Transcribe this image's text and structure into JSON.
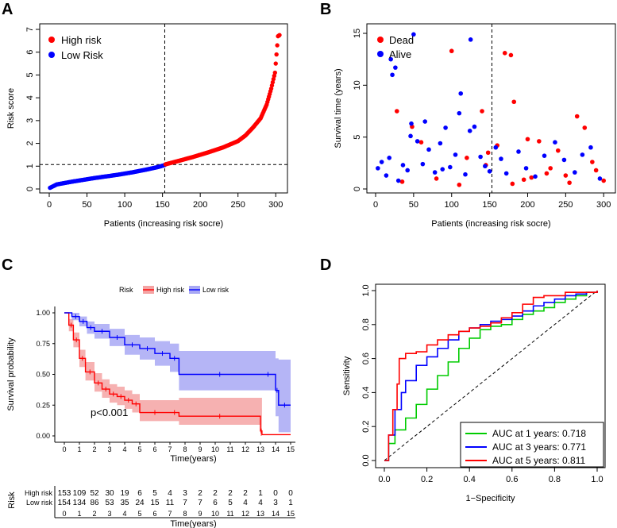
{
  "chart_data": [
    {
      "panel": "A",
      "type": "scatter",
      "xlabel": "Patients (increasing risk socre)",
      "ylabel": "Risk score",
      "xlim": [
        0,
        305
      ],
      "ylim": [
        0,
        7
      ],
      "xticks": [
        0,
        50,
        100,
        150,
        200,
        250,
        300
      ],
      "yticks": [
        0,
        1,
        2,
        3,
        4,
        5,
        6,
        7
      ],
      "cutoff_x": 153,
      "cutoff_y": 1.07,
      "legend": [
        "High risk",
        "Low Risk"
      ],
      "series": [
        {
          "name": "Low Risk",
          "color": "#0000FF",
          "x": [
            1,
            10,
            30,
            60,
            90,
            110,
            130,
            145,
            153
          ],
          "y": [
            0.05,
            0.2,
            0.32,
            0.48,
            0.62,
            0.73,
            0.86,
            0.97,
            1.05
          ]
        },
        {
          "name": "High risk",
          "color": "#FF0000",
          "x": [
            154,
            170,
            190,
            210,
            230,
            250,
            260,
            270,
            280,
            288,
            294,
            299,
            303,
            305
          ],
          "y": [
            1.08,
            1.22,
            1.4,
            1.6,
            1.82,
            2.1,
            2.35,
            2.7,
            3.1,
            3.7,
            4.4,
            5.1,
            6.7,
            6.75
          ]
        }
      ]
    },
    {
      "panel": "B",
      "type": "scatter",
      "xlabel": "Patients (increasing risk socre)",
      "ylabel": "Survival time (years)",
      "xlim": [
        0,
        305
      ],
      "ylim": [
        0,
        15
      ],
      "xticks": [
        0,
        50,
        100,
        150,
        200,
        250,
        300
      ],
      "yticks": [
        0,
        5,
        10,
        15
      ],
      "cutoff_x": 153,
      "legend": [
        "Dead",
        "Alive"
      ],
      "series": [
        {
          "name": "Dead",
          "color": "#FF0000",
          "x": [
            28,
            48,
            60,
            100,
            120,
            140,
            148,
            160,
            170,
            178,
            182,
            200,
            215,
            230,
            250,
            265,
            275,
            290,
            300,
            180,
            195,
            240,
            205,
            255,
            285,
            225,
            145,
            110,
            35,
            80
          ],
          "y": [
            7.5,
            6.0,
            4.5,
            13.3,
            3.0,
            7.5,
            3.5,
            4.2,
            13.1,
            12.9,
            8.4,
            4.8,
            4.6,
            2.0,
            1.3,
            7.0,
            5.9,
            1.8,
            0.8,
            0.5,
            0.9,
            3.7,
            1.1,
            0.6,
            2.6,
            1.5,
            2.3,
            0.4,
            0.7,
            1.0
          ]
        },
        {
          "name": "Alive",
          "color": "#0000FF",
          "x": [
            3,
            8,
            14,
            18,
            22,
            26,
            30,
            36,
            42,
            46,
            50,
            55,
            62,
            70,
            78,
            85,
            92,
            98,
            105,
            112,
            118,
            125,
            130,
            138,
            144,
            150,
            158,
            165,
            172,
            188,
            198,
            210,
            222,
            236,
            248,
            262,
            272,
            283,
            295,
            20,
            47,
            124,
            110,
            65,
            88
          ],
          "y": [
            2.0,
            2.6,
            1.3,
            3.0,
            11.0,
            11.7,
            0.8,
            2.3,
            1.8,
            5.1,
            14.9,
            4.6,
            2.4,
            3.8,
            1.6,
            4.4,
            5.9,
            2.1,
            3.3,
            9.2,
            1.4,
            14.4,
            6.0,
            3.1,
            2.2,
            1.7,
            4.0,
            2.9,
            1.5,
            3.6,
            2.0,
            1.2,
            3.2,
            4.5,
            2.8,
            1.6,
            3.3,
            4.0,
            1.0,
            12.5,
            6.3,
            5.6,
            7.3,
            6.5,
            1.9
          ]
        }
      ]
    },
    {
      "panel": "C",
      "type": "line",
      "subtype": "kaplan-meier",
      "xlabel": "Time(years)",
      "ylabel": "Survival probability",
      "xlim": [
        0,
        15
      ],
      "ylim": [
        0,
        1
      ],
      "xticks": [
        0,
        1,
        2,
        3,
        4,
        5,
        6,
        7,
        8,
        9,
        10,
        11,
        12,
        13,
        14,
        15
      ],
      "yticks": [
        0.0,
        0.25,
        0.5,
        0.75,
        1.0
      ],
      "legend_title": "Risk",
      "legend": [
        "High risk",
        "Low risk"
      ],
      "annotation": "p<0.001",
      "series": [
        {
          "name": "High risk",
          "color": "#FF0000",
          "fill": "#F4A3A3",
          "x": [
            0,
            0.3,
            0.6,
            1.0,
            1.4,
            2.0,
            2.5,
            3.0,
            3.5,
            4.0,
            4.5,
            5.0,
            7.0,
            7.6,
            13.0,
            13.1
          ],
          "y": [
            1.0,
            0.9,
            0.78,
            0.63,
            0.52,
            0.43,
            0.38,
            0.34,
            0.32,
            0.29,
            0.26,
            0.19,
            0.19,
            0.16,
            0.04,
            0.01
          ],
          "lower": [
            1.0,
            0.85,
            0.72,
            0.56,
            0.45,
            0.36,
            0.31,
            0.27,
            0.25,
            0.22,
            0.19,
            0.12,
            0.12,
            0.09,
            0.0,
            0.0
          ],
          "upper": [
            1.0,
            0.95,
            0.84,
            0.7,
            0.6,
            0.51,
            0.46,
            0.42,
            0.4,
            0.37,
            0.34,
            0.29,
            0.29,
            0.31,
            0.31,
            0.31
          ]
        },
        {
          "name": "Low risk",
          "color": "#0000FF",
          "fill": "#A8A8F4",
          "x": [
            0,
            0.5,
            1.0,
            1.5,
            2.0,
            3.0,
            4.0,
            5.0,
            6.0,
            7.0,
            7.6,
            13.0,
            14.0,
            14.2,
            15.0
          ],
          "y": [
            1.0,
            0.97,
            0.93,
            0.88,
            0.85,
            0.8,
            0.74,
            0.71,
            0.67,
            0.63,
            0.5,
            0.5,
            0.37,
            0.25,
            0.25
          ],
          "lower": [
            1.0,
            0.94,
            0.89,
            0.83,
            0.79,
            0.73,
            0.66,
            0.62,
            0.57,
            0.52,
            0.37,
            0.37,
            0.16,
            0.03,
            0.03
          ],
          "upper": [
            1.0,
            1.0,
            0.97,
            0.93,
            0.91,
            0.87,
            0.82,
            0.8,
            0.77,
            0.75,
            0.69,
            0.69,
            0.63,
            0.62,
            0.62
          ]
        }
      ],
      "risk_table": {
        "title": "Risk",
        "xlabel": "Time(years)",
        "rows": [
          {
            "label": "High risk",
            "color": "#FF0000",
            "counts": [
              153,
              109,
              52,
              30,
              19,
              6,
              5,
              4,
              3,
              2,
              2,
              2,
              2,
              1,
              0,
              0
            ]
          },
          {
            "label": "Low risk",
            "color": "#0000FF",
            "counts": [
              154,
              134,
              86,
              53,
              35,
              24,
              15,
              11,
              7,
              7,
              6,
              5,
              4,
              4,
              3,
              1
            ]
          }
        ]
      }
    },
    {
      "panel": "D",
      "type": "line",
      "subtype": "roc",
      "xlabel": "1−Specificity",
      "ylabel": "Sensitivity",
      "xlim": [
        0,
        1
      ],
      "ylim": [
        0,
        1
      ],
      "xticks": [
        0.0,
        0.2,
        0.4,
        0.6,
        0.8,
        1.0
      ],
      "yticks": [
        0.0,
        0.2,
        0.4,
        0.6,
        0.8,
        1.0
      ],
      "series": [
        {
          "name": "AUC at 1 years: 0.718",
          "color": "#00CC00",
          "x": [
            0,
            0.02,
            0.05,
            0.1,
            0.15,
            0.2,
            0.25,
            0.3,
            0.35,
            0.4,
            0.45,
            0.5,
            0.55,
            0.6,
            0.65,
            0.7,
            0.75,
            0.8,
            0.85,
            0.9,
            0.95,
            1.0
          ],
          "y": [
            0,
            0.1,
            0.18,
            0.25,
            0.33,
            0.42,
            0.5,
            0.58,
            0.66,
            0.72,
            0.77,
            0.79,
            0.8,
            0.83,
            0.86,
            0.88,
            0.9,
            0.93,
            0.95,
            0.97,
            0.99,
            1.0
          ]
        },
        {
          "name": "AUC at 3 years: 0.771",
          "color": "#0000FF",
          "x": [
            0,
            0.02,
            0.05,
            0.08,
            0.1,
            0.15,
            0.2,
            0.25,
            0.3,
            0.35,
            0.4,
            0.45,
            0.5,
            0.55,
            0.6,
            0.65,
            0.7,
            0.75,
            0.8,
            0.85,
            0.9,
            0.95,
            1.0
          ],
          "y": [
            0,
            0.15,
            0.3,
            0.4,
            0.47,
            0.56,
            0.61,
            0.66,
            0.71,
            0.76,
            0.78,
            0.8,
            0.82,
            0.83,
            0.85,
            0.88,
            0.91,
            0.93,
            0.95,
            0.97,
            0.98,
            0.99,
            1.0
          ]
        },
        {
          "name": "AUC at 5 years: 0.811",
          "color": "#FF0000",
          "x": [
            0,
            0.02,
            0.04,
            0.06,
            0.07,
            0.1,
            0.15,
            0.2,
            0.25,
            0.3,
            0.35,
            0.4,
            0.45,
            0.5,
            0.55,
            0.6,
            0.65,
            0.7,
            0.75,
            0.8,
            0.85,
            0.9,
            1.0
          ],
          "y": [
            0,
            0.15,
            0.3,
            0.45,
            0.6,
            0.63,
            0.64,
            0.68,
            0.71,
            0.74,
            0.76,
            0.78,
            0.79,
            0.81,
            0.84,
            0.87,
            0.92,
            0.96,
            0.97,
            0.97,
            0.99,
            0.99,
            1.0
          ]
        }
      ]
    }
  ]
}
